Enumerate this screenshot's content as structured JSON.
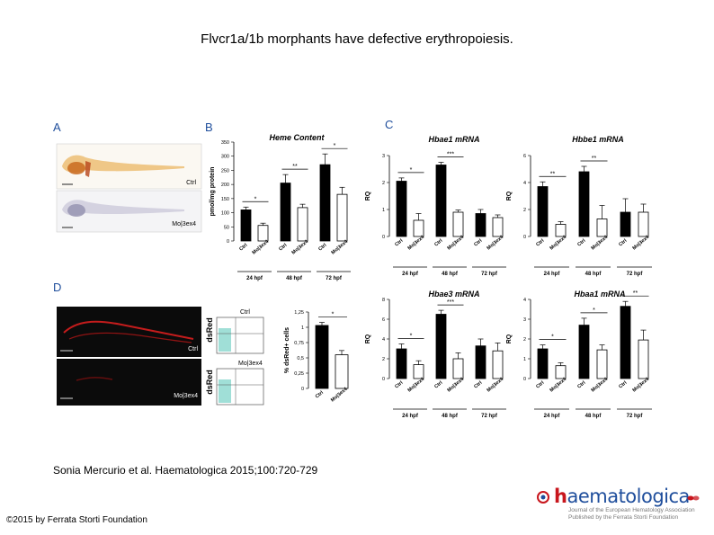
{
  "slide": {
    "title": "Flvcr1a/1b morphants have defective erythropoiesis.",
    "citation": "Sonia Mercurio et al. Haematologica 2015;100:720-729",
    "copyright": "©2015 by Ferrata Storti Foundation"
  },
  "logo": {
    "word_h": "h",
    "word_rest": "aematologica",
    "line1": "Journal of the European Hematology Association",
    "line2": "Published by the Ferrata Storti Foundation"
  },
  "panels": {
    "A": {
      "letter": "A",
      "ctrl": "Ctrl",
      "mo": "Mo|3ex4"
    },
    "B": {
      "letter": "B",
      "title": "Heme Content",
      "ylabel": "pmol/mg protein"
    },
    "C": {
      "letter": "C",
      "titles": [
        "Hbae1 mRNA",
        "Hbbe1 mRNA",
        "Hbae3 mRNA",
        "Hbaa1 mRNA"
      ],
      "ylabel": "RQ"
    },
    "D": {
      "letter": "D",
      "ctrl": "Ctrl",
      "mo": "Mo|3ex4",
      "flow_ylabel": "dsRed",
      "flow_ctrl": "Ctrl",
      "flow_mo": "Mo|3ex4",
      "bar_ylabel": "% dsRed+ cells"
    }
  },
  "chart_data": [
    {
      "id": "B",
      "type": "bar",
      "title": "Heme Content",
      "xlabel": "",
      "ylabel": "pmol/mg protein",
      "ylim": [
        0,
        350
      ],
      "yticks": [
        "0",
        "50",
        "100",
        "150",
        "200",
        "250",
        "300",
        "350"
      ],
      "categories": [
        "Ctrl",
        "Mo|3ex4",
        "Ctrl",
        "Mo|3ex4",
        "Ctrl",
        "Mo|3ex4"
      ],
      "groups": [
        "24 hpf",
        "48 hpf",
        "72 hpf"
      ],
      "values": [
        110,
        55,
        205,
        118,
        270,
        165
      ],
      "errors": [
        10,
        8,
        30,
        12,
        38,
        25
      ],
      "significance": [
        "*",
        "**",
        "*"
      ]
    },
    {
      "id": "C1",
      "type": "bar",
      "title": "Hbae1 mRNA",
      "xlabel": "",
      "ylabel": "RQ",
      "ylim": [
        0,
        3
      ],
      "yticks": [
        "0",
        "1",
        "2",
        "3"
      ],
      "categories": [
        "Ctrl",
        "Mo|3ex4",
        "Ctrl",
        "Mo|3ex4",
        "Ctrl",
        "Mo|3ex4"
      ],
      "groups": [
        "24 hpf",
        "48 hpf",
        "72 hpf"
      ],
      "values": [
        2.05,
        0.6,
        2.65,
        0.9,
        0.85,
        0.7
      ],
      "errors": [
        0.12,
        0.25,
        0.1,
        0.08,
        0.15,
        0.1
      ],
      "significance": [
        "*",
        "***",
        ""
      ]
    },
    {
      "id": "C2",
      "type": "bar",
      "title": "Hbbe1 mRNA",
      "xlabel": "",
      "ylabel": "RQ",
      "ylim": [
        0,
        6
      ],
      "yticks": [
        "0",
        "2",
        "4",
        "6"
      ],
      "categories": [
        "Ctrl",
        "Mo|3ex4",
        "Ctrl",
        "Mo|3ex4",
        "Ctrl",
        "Mo|3ex4"
      ],
      "groups": [
        "24 hpf",
        "48 hpf",
        "72 hpf"
      ],
      "values": [
        3.7,
        0.9,
        4.8,
        1.3,
        1.8,
        1.8
      ],
      "errors": [
        0.35,
        0.2,
        0.4,
        1.0,
        1.0,
        0.6
      ],
      "significance": [
        "**",
        "**",
        ""
      ]
    },
    {
      "id": "C3",
      "type": "bar",
      "title": "Hbae3 mRNA",
      "xlabel": "",
      "ylabel": "RQ",
      "ylim": [
        0,
        8
      ],
      "yticks": [
        "0",
        "2",
        "4",
        "6",
        "8"
      ],
      "categories": [
        "Ctrl",
        "Mo|3ex4",
        "Ctrl",
        "Mo|3ex4",
        "Ctrl",
        "Mo|3ex4"
      ],
      "groups": [
        "24 hpf",
        "48 hpf",
        "72 hpf"
      ],
      "values": [
        3.0,
        1.4,
        6.5,
        2.0,
        3.3,
        2.8
      ],
      "errors": [
        0.5,
        0.4,
        0.4,
        0.6,
        0.7,
        0.8
      ],
      "significance": [
        "*",
        "***",
        ""
      ]
    },
    {
      "id": "C4",
      "type": "bar",
      "title": "Hbaa1 mRNA",
      "xlabel": "",
      "ylabel": "RQ",
      "ylim": [
        0,
        4
      ],
      "yticks": [
        "0",
        "1",
        "2",
        "3",
        "4"
      ],
      "categories": [
        "Ctrl",
        "Mo|3ex4",
        "Ctrl",
        "Mo|3ex4",
        "Ctrl",
        "Mo|3ex4"
      ],
      "groups": [
        "24 hpf",
        "48 hpf",
        "72 hpf"
      ],
      "values": [
        1.5,
        0.65,
        2.7,
        1.45,
        3.65,
        1.95
      ],
      "errors": [
        0.2,
        0.15,
        0.35,
        0.25,
        0.25,
        0.5
      ],
      "significance": [
        "*",
        "*",
        "**"
      ]
    },
    {
      "id": "D",
      "type": "bar",
      "title": "",
      "xlabel": "",
      "ylabel": "% dsRed+ cells",
      "ylim": [
        0,
        1.25
      ],
      "yticks": [
        "0",
        "0,25",
        "0,5",
        "0,75",
        "1",
        "1,25"
      ],
      "categories": [
        "Ctrl",
        "Mo|3ex4"
      ],
      "groups": [],
      "values": [
        1.03,
        0.55
      ],
      "errors": [
        0.05,
        0.07
      ],
      "significance": [
        "*"
      ]
    }
  ],
  "colors": {
    "ctrl_bar": "#000000",
    "mo_bar": "#ffffff",
    "heading": "#1f4e9c",
    "brand_red": "#c8161d"
  }
}
